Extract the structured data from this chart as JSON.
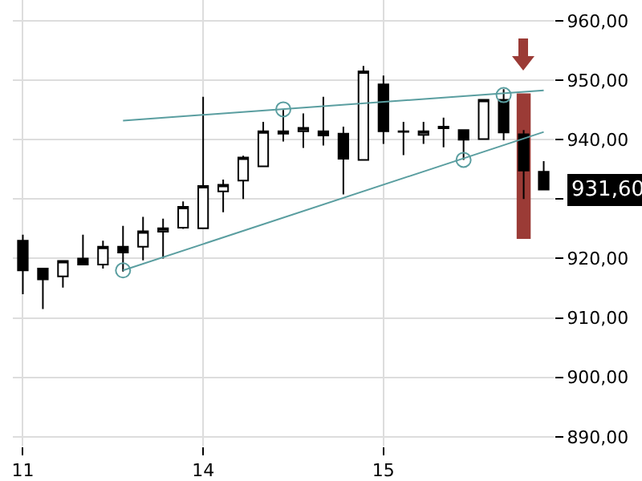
{
  "chart_data": {
    "type": "candlestick",
    "categories": [
      "11",
      null,
      null,
      null,
      null,
      null,
      null,
      null,
      null,
      "14",
      null,
      null,
      null,
      null,
      null,
      null,
      null,
      null,
      "15",
      null,
      null,
      null,
      null,
      null,
      null,
      null,
      null
    ],
    "ohlc": [
      [
        923,
        924,
        914,
        918
      ],
      [
        918.3,
        918.3,
        911.5,
        916.5
      ],
      [
        917,
        919.6,
        915.1,
        919.6
      ],
      [
        920,
        924,
        919,
        919
      ],
      [
        919,
        923,
        918.3,
        922
      ],
      [
        922,
        925.5,
        917.8,
        921
      ],
      [
        922,
        927,
        919.7,
        924.6
      ],
      [
        924.5,
        926.7,
        920,
        925.1
      ],
      [
        925.2,
        929.6,
        925,
        928.7
      ],
      [
        925.1,
        947.2,
        925,
        932.2
      ],
      [
        931.3,
        933.3,
        927.8,
        932.4
      ],
      [
        933.1,
        937.3,
        930,
        937
      ],
      [
        935.5,
        943,
        935.5,
        941.4
      ],
      [
        941.4,
        945,
        939.7,
        941
      ],
      [
        941.4,
        944.4,
        938.6,
        942
      ],
      [
        941.4,
        947.2,
        939,
        940.7
      ],
      [
        941,
        942.2,
        930.8,
        936.8
      ],
      [
        936.6,
        952.4,
        936.5,
        951.5
      ],
      [
        949.3,
        950.8,
        939.3,
        941.4
      ],
      [
        941.4,
        943,
        937.4,
        941.3
      ],
      [
        940.8,
        943,
        939.3,
        941.4
      ],
      [
        942.2,
        943.7,
        938.7,
        941.9
      ],
      [
        941.6,
        941.6,
        936.6,
        940
      ],
      [
        940.1,
        946.7,
        940,
        946.7
      ],
      [
        946.7,
        948.5,
        939.9,
        941.2
      ],
      [
        940.9,
        941.6,
        930,
        934.8
      ],
      [
        934.6,
        936.4,
        931.6,
        931.6
      ]
    ],
    "series": [
      {
        "type": "bar",
        "base": [
          null,
          null,
          null,
          null,
          null,
          null,
          null,
          null,
          null,
          null,
          null,
          null,
          null,
          null,
          null,
          null,
          null,
          null,
          null,
          null,
          null,
          null,
          null,
          null,
          null,
          923.3,
          null
        ],
        "values": [
          null,
          null,
          null,
          null,
          null,
          null,
          null,
          null,
          null,
          null,
          null,
          null,
          null,
          null,
          null,
          null,
          null,
          null,
          null,
          null,
          null,
          null,
          null,
          null,
          null,
          24.5,
          null
        ],
        "color": "#9b3b36"
      },
      {
        "type": "line",
        "values": [
          null,
          null,
          null,
          null,
          null,
          943.2,
          null,
          null,
          null,
          null,
          null,
          null,
          null,
          null,
          null,
          null,
          null,
          null,
          null,
          null,
          null,
          null,
          null,
          null,
          null,
          null,
          948.3
        ],
        "color": "#5a9ea0",
        "marker": "none"
      },
      {
        "type": "line",
        "values": [
          null,
          null,
          null,
          null,
          null,
          918,
          null,
          null,
          null,
          null,
          null,
          null,
          null,
          null,
          null,
          null,
          null,
          null,
          null,
          null,
          null,
          null,
          null,
          null,
          null,
          null,
          941.3
        ],
        "color": "#5a9ea0",
        "marker": "none"
      },
      {
        "type": "scatter",
        "values": [
          null,
          null,
          null,
          null,
          null,
          918,
          null,
          null,
          null,
          null,
          null,
          null,
          null,
          945.1,
          null,
          null,
          null,
          null,
          null,
          null,
          null,
          null,
          936.6,
          null,
          947.5,
          null,
          null
        ],
        "color": "#5a9ea0",
        "marker": "circle"
      }
    ],
    "ylim": [
      888.5,
      963.5
    ],
    "yticks": [
      {
        "value": 890,
        "label": "890,00"
      },
      {
        "value": 900,
        "label": "900,00"
      },
      {
        "value": 910,
        "label": "910,00"
      },
      {
        "value": 920,
        "label": "920,00"
      },
      {
        "value": 930,
        "label": null
      },
      {
        "value": 940,
        "label": "940,00"
      },
      {
        "value": 950,
        "label": "950,00"
      },
      {
        "value": 960,
        "label": "960,00"
      }
    ],
    "annotations": [
      "931,60"
    ],
    "grid": true
  }
}
